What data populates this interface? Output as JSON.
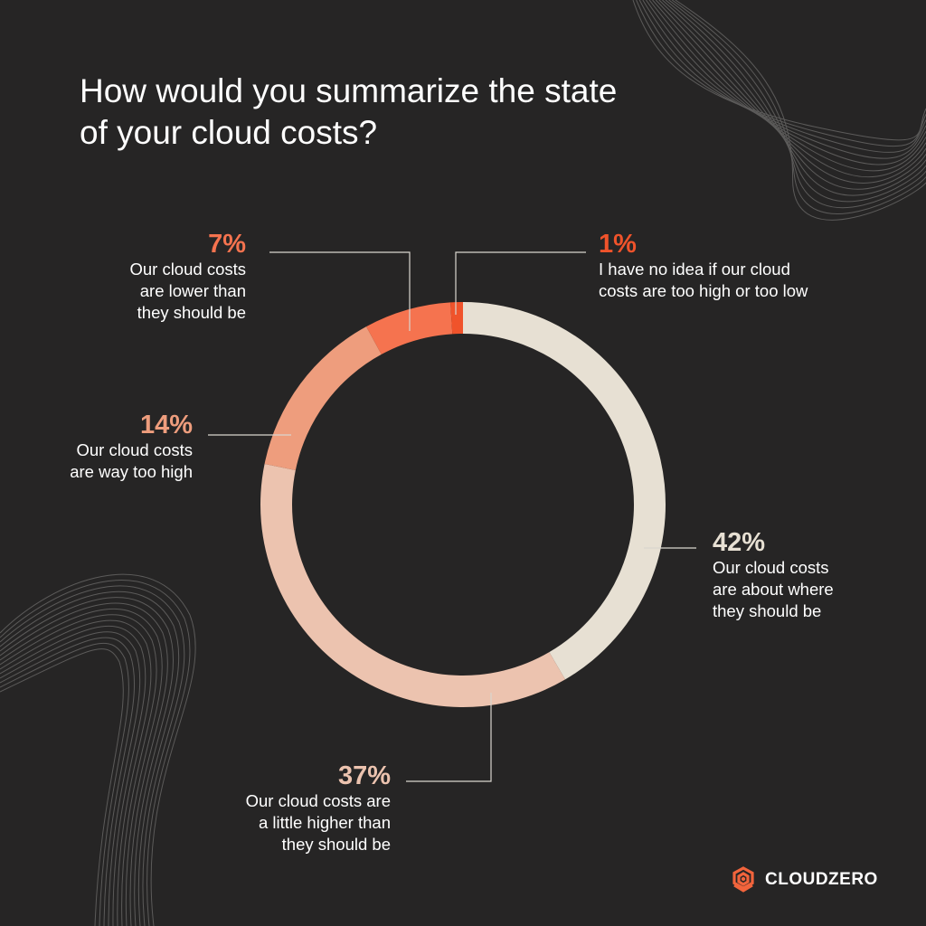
{
  "title": "How would you summarize the state of your cloud costs?",
  "logo_text": "CLOUDZERO",
  "colors": {
    "background": "#262525",
    "text": "#ffffff",
    "leader_line": "#d9d6cf",
    "decor_line": "#5c5b5a",
    "logo_accent": "#f2643c"
  },
  "chart_data": {
    "type": "pie",
    "variant": "donut",
    "start": "top",
    "direction": "clockwise",
    "slices": [
      {
        "label": "Our cloud costs are about where they should be",
        "value": 42,
        "display": "42%",
        "color": "#e7e0d3"
      },
      {
        "label": "Our cloud costs are a little higher than they should be",
        "value": 37,
        "display": "37%",
        "color": "#ecc3af"
      },
      {
        "label": "Our cloud costs are way too high",
        "value": 14,
        "display": "14%",
        "color": "#ee9d7d"
      },
      {
        "label": "Our cloud costs are lower than they should be",
        "value": 7,
        "display": "7%",
        "color": "#f5734f"
      },
      {
        "label": "I have no idea if our cloud costs are too high or too low",
        "value": 1,
        "display": "1%",
        "color": "#f0532b"
      }
    ],
    "labels": {
      "about_where": {
        "pct": "42%",
        "lines": [
          "Our cloud costs",
          "are about where",
          "they should be"
        ],
        "color": "#e7e0d3"
      },
      "little_higher": {
        "pct": "37%",
        "lines": [
          "Our cloud costs are",
          "a little higher than",
          "they should be"
        ],
        "color": "#ecc3af"
      },
      "way_too_high": {
        "pct": "14%",
        "lines": [
          "Our cloud costs",
          "are way too high"
        ],
        "color": "#ee9d7d"
      },
      "lower": {
        "pct": "7%",
        "lines": [
          "Our cloud costs",
          "are lower than",
          "they should be"
        ],
        "color": "#f5734f"
      },
      "no_idea": {
        "pct": "1%",
        "lines": [
          "I have no idea if our cloud",
          "costs are too high or too low"
        ],
        "color": "#f0532b"
      }
    }
  }
}
